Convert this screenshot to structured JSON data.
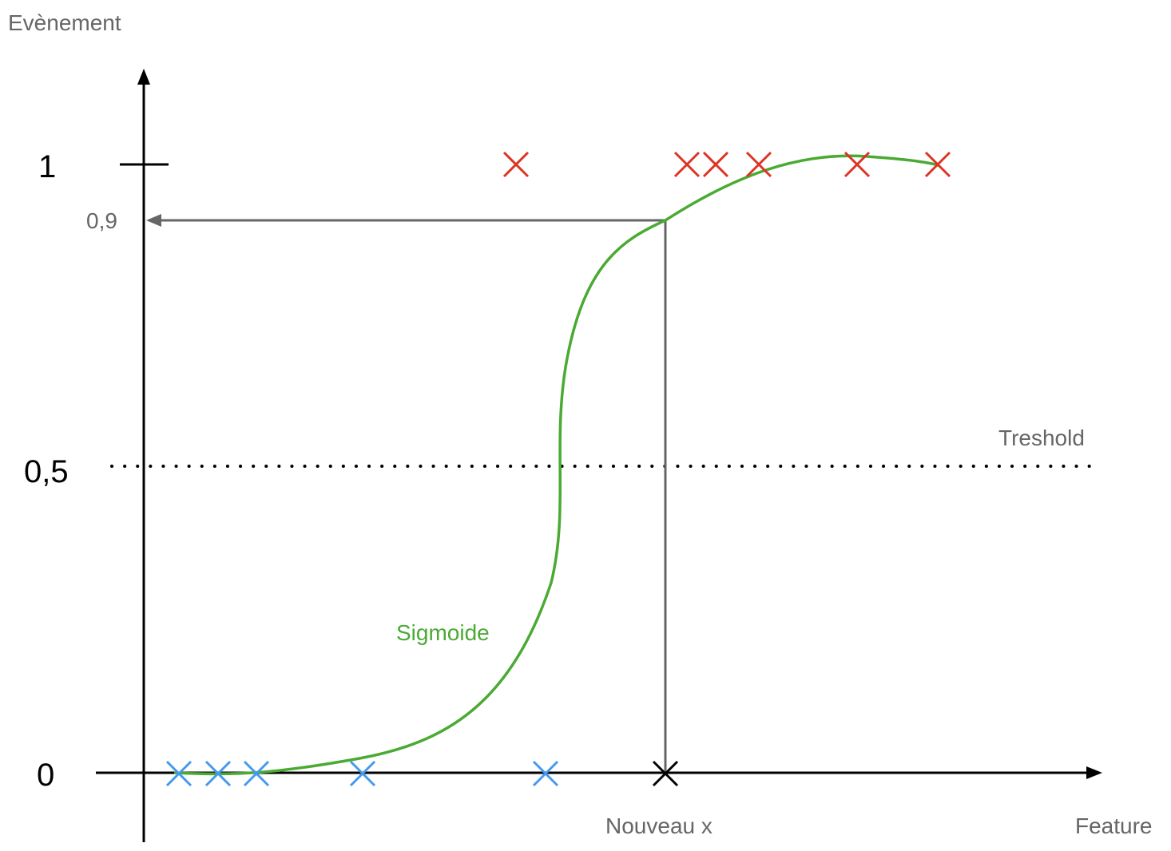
{
  "labels": {
    "y_axis": "Evènement",
    "x_axis": "Feature",
    "tick_1": "1",
    "tick_05": "0,5",
    "tick_0": "0",
    "readout": "0,9",
    "threshold": "Treshold",
    "curve": "Sigmoide",
    "new_point": "Nouveau x"
  },
  "colors": {
    "axis": "#000000",
    "guide": "#666666",
    "curve": "#4aaa33",
    "class_1": "#dd3322",
    "class_0": "#4499ee",
    "new_point": "#000000"
  },
  "markers": {
    "class_1_count": 6,
    "class_0_count": 5
  }
}
